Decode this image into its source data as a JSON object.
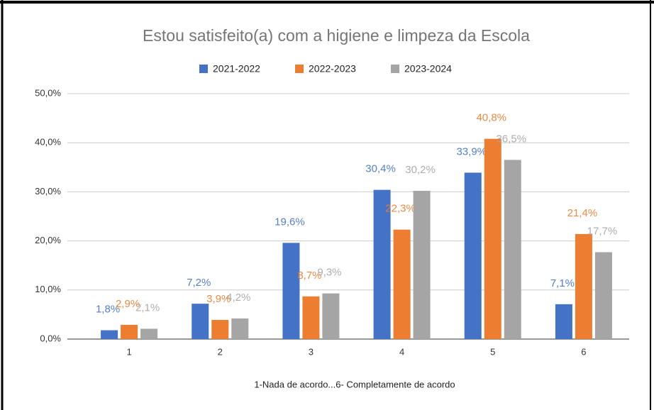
{
  "chart_data": {
    "type": "bar",
    "title": "Estou satisfeito(a)  com a higiene e limpeza da Escola",
    "xlabel": "1-Nada de acordo...6- Completamente de acordo",
    "categories": [
      "1",
      "2",
      "3",
      "4",
      "5",
      "6"
    ],
    "series": [
      {
        "name": "2021-2022",
        "color": "#4472c4",
        "values": [
          1.8,
          7.2,
          19.6,
          30.4,
          33.9,
          7.1
        ],
        "value_labels": [
          "1,8%",
          "7,2%",
          "19,6%",
          "30,4%",
          "33,9%",
          "7,1%"
        ]
      },
      {
        "name": "2022-2023",
        "color": "#ed7d31",
        "values": [
          2.9,
          3.9,
          8.7,
          22.3,
          40.8,
          21.4
        ],
        "value_labels": [
          "2,9%",
          "3,9%",
          "8,7%",
          "22,3%",
          "40,8%",
          "21,4%"
        ]
      },
      {
        "name": "2023-2024",
        "color": "#a5a5a5",
        "values": [
          2.1,
          4.2,
          9.3,
          30.2,
          36.5,
          17.7
        ],
        "value_labels": [
          "2,1%",
          "4,2%",
          "9,3%",
          "30,2%",
          "36,5%",
          "17,7%"
        ]
      }
    ],
    "ylim": [
      0,
      50
    ],
    "yticks": [
      {
        "value": 0,
        "label": "0,0%"
      },
      {
        "value": 10,
        "label": "10,0%"
      },
      {
        "value": 20,
        "label": "20,0%"
      },
      {
        "value": 30,
        "label": "30,0%"
      },
      {
        "value": 40,
        "label": "40,0%"
      },
      {
        "value": 50,
        "label": "50,0%"
      }
    ],
    "grid": true,
    "legend": "top"
  }
}
